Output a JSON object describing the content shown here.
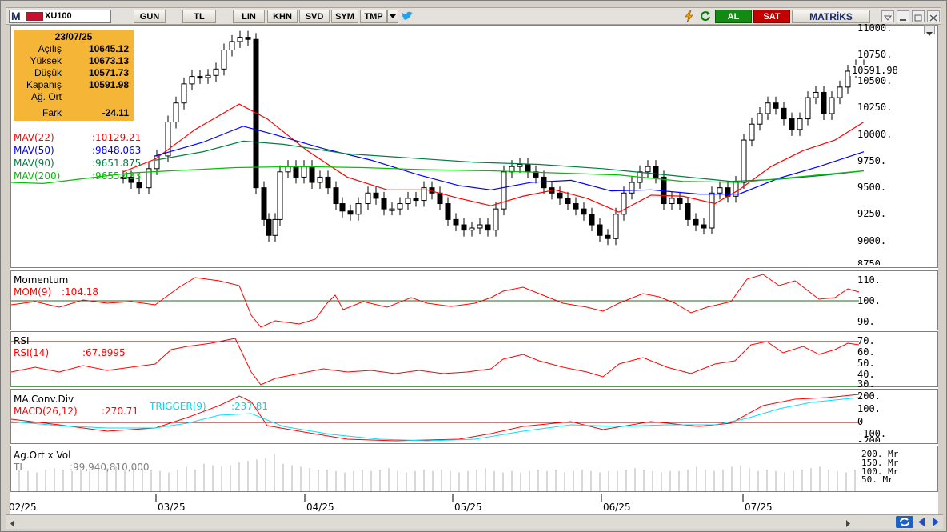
{
  "toolbar": {
    "app_icon": "M",
    "symbol": "XU100",
    "buttons": [
      "GUN",
      "TL",
      "LIN",
      "KHN",
      "SVD",
      "SYM",
      "TMP"
    ],
    "buy_label": "AL",
    "sell_label": "SAT",
    "brand": "MATRİKS"
  },
  "info": {
    "date": "23/07/25",
    "rows": [
      {
        "label": "Açılış",
        "value": "10645.12"
      },
      {
        "label": "Yüksek",
        "value": "10673.13"
      },
      {
        "label": "Düşük",
        "value": "10571.73"
      },
      {
        "label": "Kapanış",
        "value": "10591.98"
      },
      {
        "label": "Ağ. Ort",
        "value": ""
      },
      {
        "label": "Fark",
        "value": "-24.11"
      }
    ]
  },
  "price_panel": {
    "last_price": "10591.98",
    "y_ticks": [
      "11000.",
      "10750.",
      "10500.",
      "10250.",
      "10000.",
      "9750.",
      "9500.",
      "9250.",
      "9000.",
      "8750."
    ],
    "mavs": [
      {
        "label": "MAV(22)",
        "value": ":10129.21",
        "color": "#ff0000"
      },
      {
        "label": "MAV(50)",
        "value": ":9848.063",
        "color": "#0000ff"
      },
      {
        "label": "MAV(90)",
        "value": ":9651.875",
        "color": "#008040"
      },
      {
        "label": "MAV(200)",
        "value": ":9655.433",
        "color": "#00c000"
      }
    ]
  },
  "momentum": {
    "title": "Momentum",
    "label": "MOM(9)",
    "value": ":104.18",
    "y_ticks": [
      "110.",
      "100.",
      "90."
    ]
  },
  "rsi": {
    "title": "RSI",
    "label": "RSI(14)",
    "value": ":67.8995",
    "y_ticks": [
      "70.",
      "60.",
      "50.",
      "40.",
      "30."
    ]
  },
  "macd": {
    "title": "MA.Conv.Div",
    "label": "MACD(26,12)",
    "value": ":270.71",
    "trigger_label": "TRIGGER(9)",
    "trigger_value": ":237.81",
    "y_ticks": [
      "200.",
      "100.",
      "0",
      "-100.",
      "-200."
    ]
  },
  "volume": {
    "title": "Ag.Ort x Vol",
    "unit": "TL",
    "value": ":99,940,810,000",
    "y_ticks": [
      "200. Mr",
      "150. Mr",
      "100. Mr",
      "50. Mr"
    ]
  },
  "x_axis": {
    "labels": [
      "02/25",
      "03/25",
      "04/25",
      "05/25",
      "06/25",
      "07/25"
    ]
  },
  "colors": {
    "up_candle": "#ffffff",
    "down_candle": "#000000",
    "mav22": "#ff0000",
    "mav50": "#0000ff",
    "mav90": "#008040",
    "mav200": "#00c000",
    "macd": "#ff0000",
    "trigger": "#00e0ff",
    "info_bg": "#f5b638"
  }
}
